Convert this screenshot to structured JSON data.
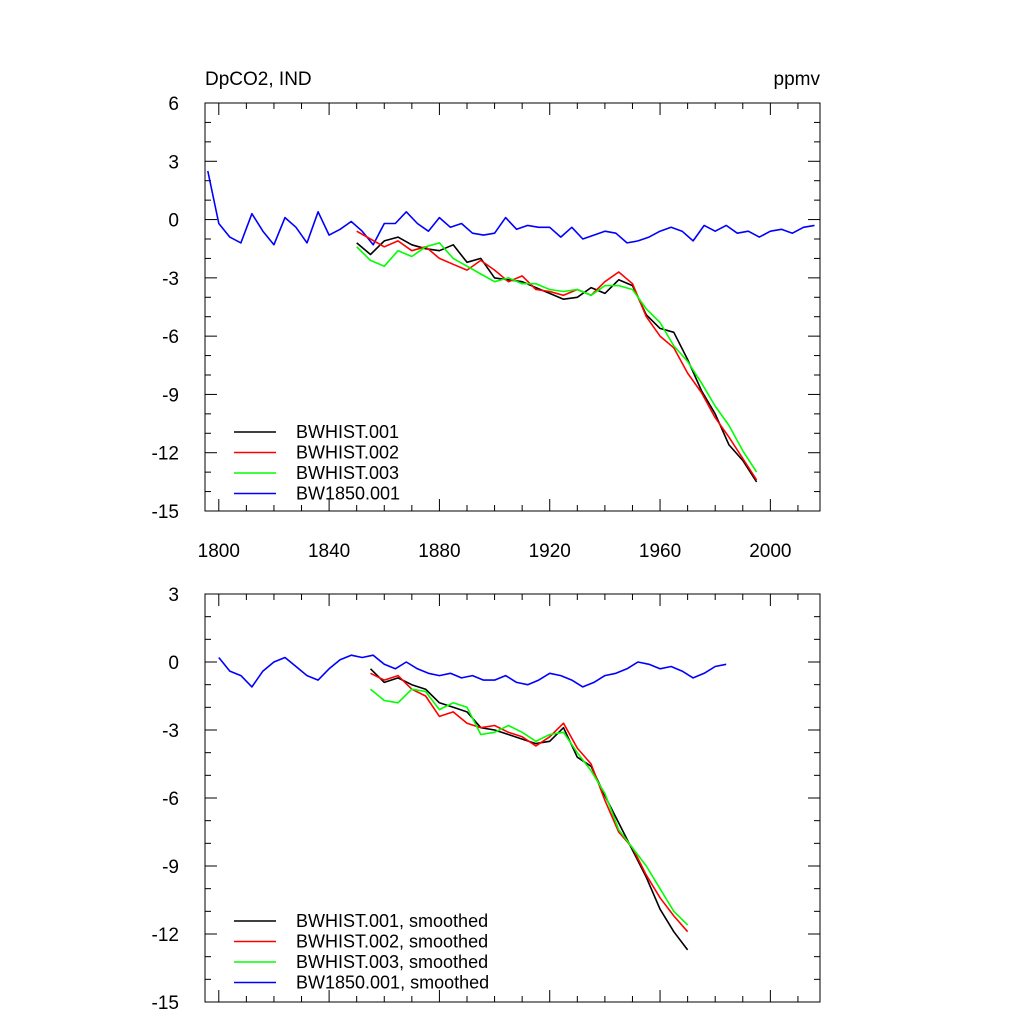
{
  "chart_data": [
    {
      "type": "line",
      "title_left": "DpCO2, IND",
      "title_right": "ppmv",
      "xlabel": "",
      "ylabel": "",
      "xlim": [
        1795,
        2018
      ],
      "ylim": [
        -15,
        6
      ],
      "xticks": [
        1800,
        1840,
        1880,
        1920,
        1960,
        2000
      ],
      "yticks": [
        6,
        3,
        0,
        -3,
        -6,
        -9,
        -12,
        -15
      ],
      "show_x_tick_labels": true,
      "legend_position": "bottom-left",
      "grid": false,
      "series": [
        {
          "name": "BWHIST.001",
          "color": "#000000",
          "x_start": 1850,
          "x_step": 5,
          "values": [
            -1.2,
            -1.8,
            -1.1,
            -0.9,
            -1.3,
            -1.5,
            -1.6,
            -1.3,
            -2.2,
            -2.0,
            -3.0,
            -3.1,
            -3.2,
            -3.5,
            -3.8,
            -4.1,
            -4.0,
            -3.5,
            -3.8,
            -3.1,
            -3.4,
            -4.9,
            -5.6,
            -5.8,
            -7.2,
            -8.8,
            -10.0,
            -11.6,
            -12.4,
            -13.5
          ]
        },
        {
          "name": "BWHIST.002",
          "color": "#ff0000",
          "x_start": 1850,
          "x_step": 5,
          "values": [
            -0.6,
            -1.0,
            -1.4,
            -1.1,
            -1.6,
            -1.4,
            -2.0,
            -2.3,
            -2.6,
            -2.1,
            -2.6,
            -3.2,
            -2.9,
            -3.6,
            -3.7,
            -3.9,
            -3.6,
            -3.9,
            -3.2,
            -2.7,
            -3.3,
            -5.0,
            -6.0,
            -6.6,
            -7.9,
            -8.9,
            -10.2,
            -11.2,
            -12.3,
            -13.4
          ]
        },
        {
          "name": "BWHIST.003",
          "color": "#00ff00",
          "x_start": 1850,
          "x_step": 5,
          "values": [
            -1.4,
            -2.1,
            -2.4,
            -1.6,
            -1.9,
            -1.4,
            -1.2,
            -2.0,
            -2.4,
            -2.8,
            -3.2,
            -3.0,
            -3.3,
            -3.3,
            -3.6,
            -3.7,
            -3.6,
            -3.9,
            -3.4,
            -3.4,
            -3.6,
            -4.6,
            -5.3,
            -6.5,
            -7.3,
            -8.4,
            -9.6,
            -10.6,
            -11.9,
            -13.0
          ]
        },
        {
          "name": "BW1850.001",
          "color": "#0000ff",
          "x_start": 1796,
          "x_step": 4,
          "values": [
            2.5,
            -0.2,
            -0.9,
            -1.2,
            0.3,
            -0.6,
            -1.3,
            0.1,
            -0.4,
            -1.2,
            0.4,
            -0.8,
            -0.5,
            -0.1,
            -0.6,
            -1.3,
            -0.2,
            -0.2,
            0.4,
            -0.2,
            -0.6,
            0.1,
            -0.4,
            -0.2,
            -0.7,
            -0.8,
            -0.7,
            0.1,
            -0.5,
            -0.3,
            -0.4,
            -0.4,
            -0.9,
            -0.4,
            -1.0,
            -0.8,
            -0.6,
            -0.7,
            -1.2,
            -1.1,
            -0.9,
            -0.6,
            -0.4,
            -0.6,
            -1.1,
            -0.3,
            -0.6,
            -0.3,
            -0.7,
            -0.6,
            -0.9,
            -0.6,
            -0.5,
            -0.7,
            -0.4,
            -0.3
          ]
        }
      ]
    },
    {
      "type": "line",
      "xlabel": "",
      "ylabel": "",
      "xlim": [
        1795,
        2018
      ],
      "ylim": [
        -15,
        3
      ],
      "xticks": [
        1800,
        1840,
        1880,
        1920,
        1960,
        2000
      ],
      "yticks": [
        3,
        0,
        -3,
        -6,
        -9,
        -12,
        -15
      ],
      "show_x_tick_labels": false,
      "legend_position": "bottom-left",
      "grid": false,
      "series": [
        {
          "name": "BWHIST.001, smoothed",
          "color": "#000000",
          "x_start": 1855,
          "x_step": 5,
          "values": [
            -0.3,
            -0.9,
            -0.7,
            -1.0,
            -1.2,
            -1.8,
            -2.0,
            -2.2,
            -2.9,
            -3.0,
            -3.2,
            -3.4,
            -3.6,
            -3.5,
            -2.9,
            -4.2,
            -4.6,
            -5.9,
            -7.1,
            -8.3,
            -9.5,
            -10.9,
            -11.9,
            -12.7
          ]
        },
        {
          "name": "BWHIST.002, smoothed",
          "color": "#ff0000",
          "x_start": 1855,
          "x_step": 5,
          "values": [
            -0.5,
            -0.8,
            -0.6,
            -1.2,
            -1.5,
            -2.4,
            -2.2,
            -2.7,
            -2.9,
            -2.8,
            -3.1,
            -3.3,
            -3.7,
            -3.3,
            -2.7,
            -3.8,
            -4.5,
            -6.1,
            -7.5,
            -8.2,
            -9.4,
            -10.4,
            -11.2,
            -11.9
          ]
        },
        {
          "name": "BWHIST.003, smoothed",
          "color": "#00ff00",
          "x_start": 1855,
          "x_step": 5,
          "values": [
            -1.2,
            -1.7,
            -1.8,
            -1.2,
            -1.3,
            -2.1,
            -1.8,
            -2.0,
            -3.2,
            -3.1,
            -2.8,
            -3.1,
            -3.5,
            -3.2,
            -3.1,
            -4.0,
            -4.8,
            -5.8,
            -7.4,
            -8.2,
            -9.0,
            -10.0,
            -11.0,
            -11.6
          ]
        },
        {
          "name": "BW1850.001, smoothed",
          "color": "#0000ff",
          "x_start": 1800,
          "x_step": 4,
          "values": [
            0.2,
            -0.4,
            -0.6,
            -1.1,
            -0.4,
            0.0,
            0.2,
            -0.2,
            -0.6,
            -0.8,
            -0.3,
            0.1,
            0.3,
            0.2,
            0.3,
            -0.1,
            -0.3,
            0.0,
            -0.3,
            -0.5,
            -0.6,
            -0.5,
            -0.7,
            -0.6,
            -0.8,
            -0.8,
            -0.6,
            -0.9,
            -1.0,
            -0.8,
            -0.5,
            -0.6,
            -0.8,
            -1.1,
            -0.9,
            -0.6,
            -0.5,
            -0.3,
            0.0,
            -0.1,
            -0.3,
            -0.2,
            -0.4,
            -0.7,
            -0.5,
            -0.2,
            -0.1
          ]
        }
      ]
    }
  ]
}
